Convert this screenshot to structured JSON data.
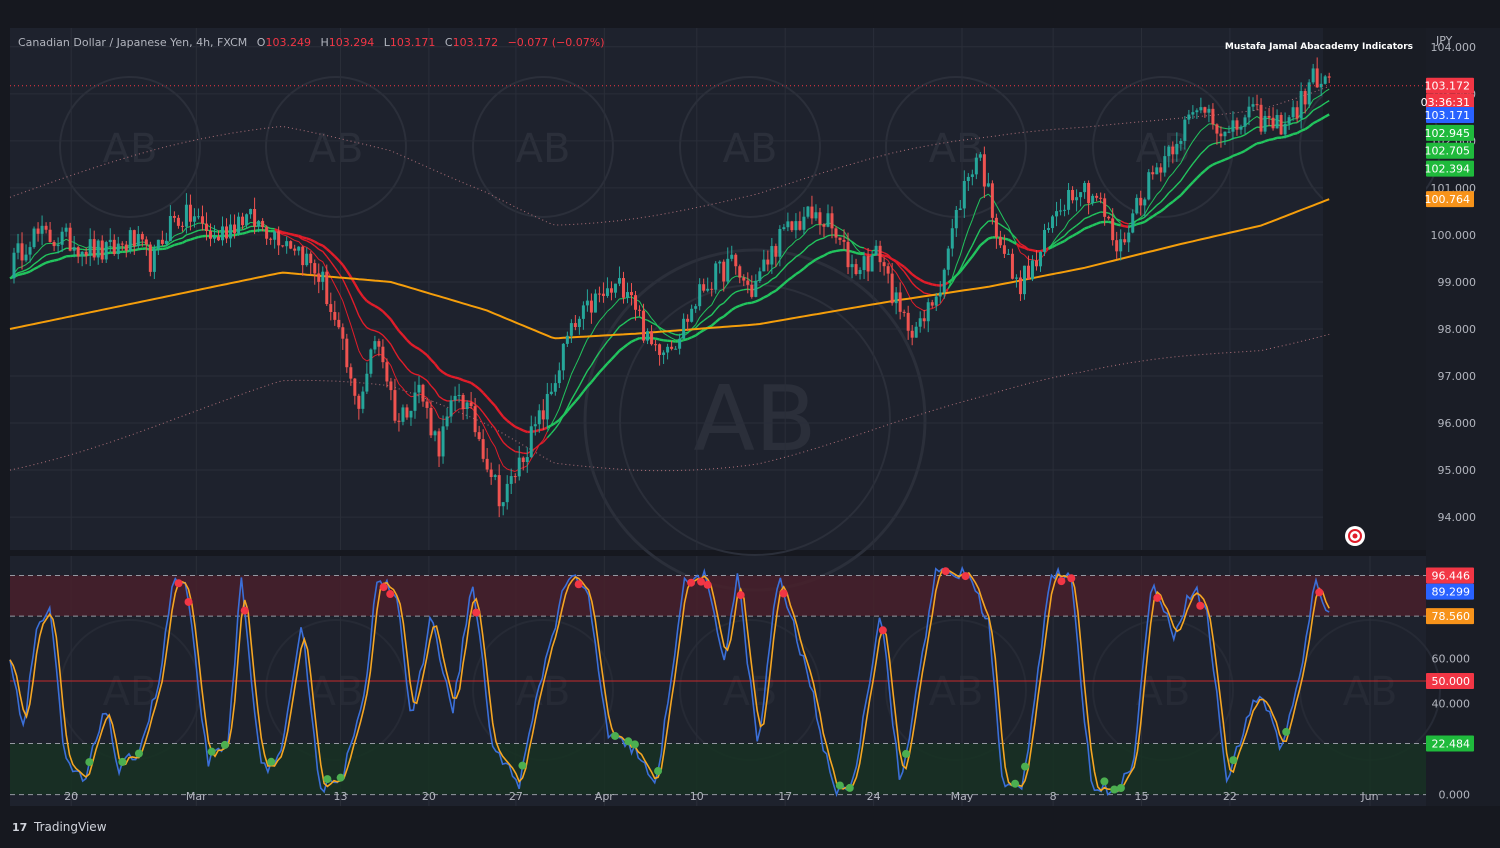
{
  "header": {
    "symbol": "Canadian Dollar / Japanese Yen, 4h, FXCM",
    "o_label": "O",
    "o_value": "103.249",
    "h_label": "H",
    "h_value": "103.294",
    "l_label": "L",
    "l_value": "103.171",
    "c_label": "C",
    "c_value": "103.172",
    "change": "−0.077 (−0.07%)"
  },
  "indicator_title": "Mustafa Jamal Abacademy Indicators",
  "currency": "JPY",
  "branding": "TradingView",
  "watermark_text": "AB",
  "colors": {
    "bg": "#1e222d",
    "panel_bg": "#16181f",
    "grid": "#2a2e39",
    "up": "#26a69a",
    "down": "#ef5350",
    "ema_green": "#22c55e",
    "ema_red": "#e11d2a",
    "sma_orange": "#f59e0b",
    "stoch_k": "#3b6fd8",
    "stoch_d": "#f5a623",
    "text": "#b2b5be",
    "label_red": "#f23645",
    "label_blue": "#2962ff",
    "label_green": "#1fba3c",
    "label_orange": "#f7931a"
  },
  "price_axis": {
    "ticks": [
      "104.000",
      "103.000",
      "102.000",
      "101.000",
      "100.000",
      "99.000",
      "98.000",
      "97.000",
      "96.000",
      "95.000",
      "94.000"
    ],
    "range": [
      93.3,
      104.4
    ],
    "badges": [
      {
        "text": "103.172",
        "value": 103.172,
        "color": "#f23645"
      },
      {
        "text": "03:36:31",
        "value": 102.83,
        "color": "#f23645"
      },
      {
        "text": "103.171",
        "value": 102.55,
        "color": "#2962ff"
      },
      {
        "text": "102.945",
        "value": 102.17,
        "color": "#1fba3c"
      },
      {
        "text": "102.705",
        "value": 101.79,
        "color": "#1fba3c"
      },
      {
        "text": "102.394",
        "value": 101.41,
        "color": "#1fba3c"
      },
      {
        "text": "100.764",
        "value": 100.76,
        "color": "#f7931a"
      }
    ]
  },
  "osc_axis": {
    "ticks": [
      "60.000",
      "40.000",
      "0.000"
    ],
    "range": [
      -5,
      105
    ],
    "levels": {
      "upper": 96.446,
      "upper2": 78.56,
      "mid": 50,
      "lower": 22.484,
      "bottom": 0
    },
    "badges": [
      {
        "text": "96.446",
        "value": 96.446,
        "color": "#f23645"
      },
      {
        "text": "89.299",
        "value": 89.299,
        "color": "#2962ff"
      },
      {
        "text": "78.560",
        "value": 78.56,
        "color": "#f7931a"
      },
      {
        "text": "50.000",
        "value": 50,
        "color": "#f23645"
      },
      {
        "text": "22.484",
        "value": 22.484,
        "color": "#1fba3c"
      }
    ]
  },
  "time_axis": {
    "labels": [
      {
        "text": "20",
        "i": 0.045
      },
      {
        "text": "Mar",
        "i": 0.137
      },
      {
        "text": "13",
        "i": 0.243
      },
      {
        "text": "20",
        "i": 0.308
      },
      {
        "text": "27",
        "i": 0.372
      },
      {
        "text": "Apr",
        "i": 0.437
      },
      {
        "text": "10",
        "i": 0.505
      },
      {
        "text": "17",
        "i": 0.57
      },
      {
        "text": "24",
        "i": 0.635
      },
      {
        "text": "May",
        "i": 0.7
      },
      {
        "text": "8",
        "i": 0.767
      },
      {
        "text": "15",
        "i": 0.832
      },
      {
        "text": "22",
        "i": 0.897
      },
      {
        "text": "Jun",
        "i": 1.0
      }
    ]
  },
  "chart_data": {
    "type": "candlestick",
    "title": "Canadian Dollar / Japanese Yen, 4h, FXCM",
    "ylim": [
      93.3,
      104.4
    ],
    "price_path": [
      {
        "t": 0.0,
        "v": 99.3
      },
      {
        "t": 0.015,
        "v": 100.0
      },
      {
        "t": 0.04,
        "v": 99.9
      },
      {
        "t": 0.07,
        "v": 99.6
      },
      {
        "t": 0.09,
        "v": 99.9
      },
      {
        "t": 0.105,
        "v": 99.4
      },
      {
        "t": 0.118,
        "v": 100.3
      },
      {
        "t": 0.135,
        "v": 100.4
      },
      {
        "t": 0.15,
        "v": 99.9
      },
      {
        "t": 0.17,
        "v": 100.4
      },
      {
        "t": 0.185,
        "v": 100.2
      },
      {
        "t": 0.21,
        "v": 99.8
      },
      {
        "t": 0.23,
        "v": 99.0
      },
      {
        "t": 0.245,
        "v": 97.5
      },
      {
        "t": 0.255,
        "v": 96.3
      },
      {
        "t": 0.27,
        "v": 97.9
      },
      {
        "t": 0.285,
        "v": 96.0
      },
      {
        "t": 0.3,
        "v": 96.8
      },
      {
        "t": 0.315,
        "v": 95.5
      },
      {
        "t": 0.33,
        "v": 96.7
      },
      {
        "t": 0.345,
        "v": 95.7
      },
      {
        "t": 0.362,
        "v": 94.3
      },
      {
        "t": 0.378,
        "v": 95.4
      },
      {
        "t": 0.395,
        "v": 96.4
      },
      {
        "t": 0.41,
        "v": 97.8
      },
      {
        "t": 0.43,
        "v": 98.6
      },
      {
        "t": 0.455,
        "v": 99.0
      },
      {
        "t": 0.47,
        "v": 97.6
      },
      {
        "t": 0.49,
        "v": 97.8
      },
      {
        "t": 0.51,
        "v": 98.9
      },
      {
        "t": 0.53,
        "v": 99.4
      },
      {
        "t": 0.545,
        "v": 98.8
      },
      {
        "t": 0.565,
        "v": 99.9
      },
      {
        "t": 0.585,
        "v": 100.4
      },
      {
        "t": 0.6,
        "v": 100.3
      },
      {
        "t": 0.62,
        "v": 99.3
      },
      {
        "t": 0.64,
        "v": 99.6
      },
      {
        "t": 0.655,
        "v": 98.2
      },
      {
        "t": 0.67,
        "v": 98.0
      },
      {
        "t": 0.685,
        "v": 99.1
      },
      {
        "t": 0.7,
        "v": 100.9
      },
      {
        "t": 0.712,
        "v": 101.8
      },
      {
        "t": 0.725,
        "v": 100.2
      },
      {
        "t": 0.74,
        "v": 98.9
      },
      {
        "t": 0.755,
        "v": 99.4
      },
      {
        "t": 0.77,
        "v": 100.6
      },
      {
        "t": 0.785,
        "v": 101.1
      },
      {
        "t": 0.8,
        "v": 100.8
      },
      {
        "t": 0.815,
        "v": 99.6
      },
      {
        "t": 0.83,
        "v": 100.8
      },
      {
        "t": 0.845,
        "v": 101.5
      },
      {
        "t": 0.86,
        "v": 102.2
      },
      {
        "t": 0.88,
        "v": 102.8
      },
      {
        "t": 0.895,
        "v": 102.0
      },
      {
        "t": 0.91,
        "v": 102.6
      },
      {
        "t": 0.93,
        "v": 102.3
      },
      {
        "t": 0.945,
        "v": 102.6
      },
      {
        "t": 0.96,
        "v": 103.4
      },
      {
        "t": 0.97,
        "v": 103.17
      }
    ],
    "sma_orange": [
      {
        "t": 0.0,
        "v": 98.0
      },
      {
        "t": 0.1,
        "v": 98.6
      },
      {
        "t": 0.2,
        "v": 99.2
      },
      {
        "t": 0.28,
        "v": 99.0
      },
      {
        "t": 0.35,
        "v": 98.4
      },
      {
        "t": 0.4,
        "v": 97.8
      },
      {
        "t": 0.46,
        "v": 97.9
      },
      {
        "t": 0.55,
        "v": 98.1
      },
      {
        "t": 0.65,
        "v": 98.6
      },
      {
        "t": 0.72,
        "v": 98.9
      },
      {
        "t": 0.79,
        "v": 99.3
      },
      {
        "t": 0.86,
        "v": 99.8
      },
      {
        "t": 0.92,
        "v": 100.2
      },
      {
        "t": 0.97,
        "v": 100.76
      }
    ],
    "stochastic_path": [
      {
        "t": 0.0,
        "v": 60
      },
      {
        "t": 0.01,
        "v": 30
      },
      {
        "t": 0.02,
        "v": 75
      },
      {
        "t": 0.03,
        "v": 80
      },
      {
        "t": 0.04,
        "v": 15
      },
      {
        "t": 0.055,
        "v": 5
      },
      {
        "t": 0.07,
        "v": 40
      },
      {
        "t": 0.08,
        "v": 10
      },
      {
        "t": 0.095,
        "v": 20
      },
      {
        "t": 0.11,
        "v": 50
      },
      {
        "t": 0.12,
        "v": 95
      },
      {
        "t": 0.13,
        "v": 90
      },
      {
        "t": 0.145,
        "v": 15
      },
      {
        "t": 0.16,
        "v": 20
      },
      {
        "t": 0.17,
        "v": 95
      },
      {
        "t": 0.185,
        "v": 10
      },
      {
        "t": 0.2,
        "v": 18
      },
      {
        "t": 0.215,
        "v": 75
      },
      {
        "t": 0.228,
        "v": 2
      },
      {
        "t": 0.245,
        "v": 10
      },
      {
        "t": 0.26,
        "v": 40
      },
      {
        "t": 0.27,
        "v": 97
      },
      {
        "t": 0.285,
        "v": 88
      },
      {
        "t": 0.295,
        "v": 30
      },
      {
        "t": 0.31,
        "v": 80
      },
      {
        "t": 0.325,
        "v": 35
      },
      {
        "t": 0.34,
        "v": 94
      },
      {
        "t": 0.355,
        "v": 20
      },
      {
        "t": 0.375,
        "v": 5
      },
      {
        "t": 0.39,
        "v": 50
      },
      {
        "t": 0.41,
        "v": 97
      },
      {
        "t": 0.425,
        "v": 88
      },
      {
        "t": 0.44,
        "v": 25
      },
      {
        "t": 0.46,
        "v": 20
      },
      {
        "t": 0.475,
        "v": 2
      },
      {
        "t": 0.495,
        "v": 92
      },
      {
        "t": 0.51,
        "v": 97
      },
      {
        "t": 0.525,
        "v": 60
      },
      {
        "t": 0.535,
        "v": 97
      },
      {
        "t": 0.55,
        "v": 20
      },
      {
        "t": 0.565,
        "v": 97
      },
      {
        "t": 0.59,
        "v": 45
      },
      {
        "t": 0.605,
        "v": 2
      },
      {
        "t": 0.62,
        "v": 5
      },
      {
        "t": 0.64,
        "v": 82
      },
      {
        "t": 0.655,
        "v": 2
      },
      {
        "t": 0.68,
        "v": 97
      },
      {
        "t": 0.705,
        "v": 97
      },
      {
        "t": 0.72,
        "v": 75
      },
      {
        "t": 0.73,
        "v": 2
      },
      {
        "t": 0.745,
        "v": 5
      },
      {
        "t": 0.765,
        "v": 97
      },
      {
        "t": 0.78,
        "v": 95
      },
      {
        "t": 0.795,
        "v": 5
      },
      {
        "t": 0.81,
        "v": 2
      },
      {
        "t": 0.825,
        "v": 10
      },
      {
        "t": 0.84,
        "v": 95
      },
      {
        "t": 0.855,
        "v": 70
      },
      {
        "t": 0.87,
        "v": 92
      },
      {
        "t": 0.88,
        "v": 80
      },
      {
        "t": 0.895,
        "v": 5
      },
      {
        "t": 0.91,
        "v": 35
      },
      {
        "t": 0.92,
        "v": 45
      },
      {
        "t": 0.935,
        "v": 20
      },
      {
        "t": 0.95,
        "v": 55
      },
      {
        "t": 0.96,
        "v": 96
      },
      {
        "t": 0.97,
        "v": 78
      }
    ]
  }
}
